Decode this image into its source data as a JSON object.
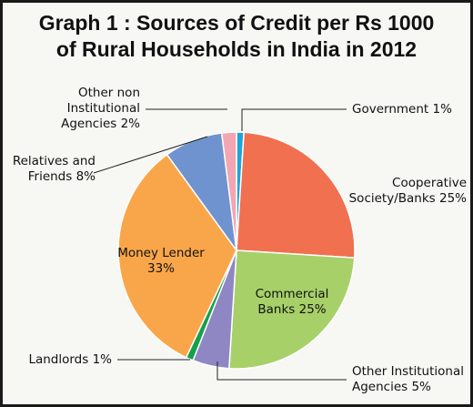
{
  "chart_data": {
    "type": "pie",
    "title_lines": [
      "Graph 1 : Sources of Credit per Rs 1000",
      "of Rural Households in India in 2012"
    ],
    "slices": [
      {
        "label_lines": [
          "Government 1%"
        ],
        "value": 1,
        "color": "#1fa3dc",
        "label_position": "outside"
      },
      {
        "label_lines": [
          "Cooperative",
          "Society/Banks 25%"
        ],
        "value": 25,
        "color": "#f07050",
        "label_position": "outside"
      },
      {
        "label_lines": [
          "Commercial",
          "Banks 25%"
        ],
        "value": 25,
        "color": "#a7d069",
        "label_position": "inside"
      },
      {
        "label_lines": [
          "Other Institutional",
          "Agencies 5%"
        ],
        "value": 5,
        "color": "#8f86c4",
        "label_position": "outside"
      },
      {
        "label_lines": [
          "Landlords 1%"
        ],
        "value": 1,
        "color": "#15a04a",
        "label_position": "outside"
      },
      {
        "label_lines": [
          "Money Lender",
          "33%"
        ],
        "value": 33,
        "color": "#f9a64a",
        "label_position": "inside"
      },
      {
        "label_lines": [
          "Relatives and",
          "Friends 8%"
        ],
        "value": 8,
        "color": "#6f93cf",
        "label_position": "outside"
      },
      {
        "label_lines": [
          "Other non",
          "Institutional",
          "Agencies 2%"
        ],
        "value": 2,
        "color": "#f2a6b4",
        "label_position": "outside"
      }
    ]
  }
}
